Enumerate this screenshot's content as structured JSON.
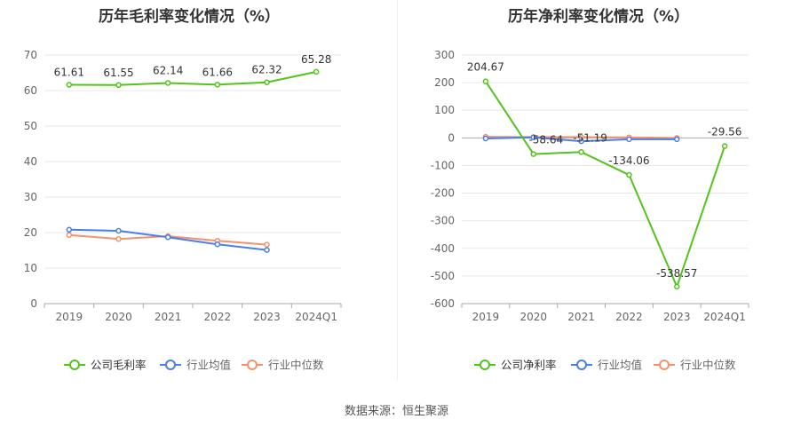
{
  "source_text": "数据来源：恒生聚源",
  "chart_data": [
    {
      "type": "line",
      "title": "历年毛利率变化情况（%）",
      "categories": [
        "2019",
        "2020",
        "2021",
        "2022",
        "2023",
        "2024Q1"
      ],
      "ylim": [
        0,
        70
      ],
      "yticks": [
        0,
        10,
        20,
        30,
        40,
        50,
        60,
        70
      ],
      "grid": true,
      "legend_position": "bottom",
      "series": [
        {
          "name": "公司毛利率",
          "color": "#52c41a",
          "values": [
            61.61,
            61.55,
            62.14,
            61.66,
            62.32,
            65.28
          ],
          "labels": true
        },
        {
          "name": "行业均值",
          "color": "#4a7fe8",
          "values": [
            20.8,
            20.5,
            18.7,
            16.7,
            15.1,
            null
          ],
          "labels": false
        },
        {
          "name": "行业中位数",
          "color": "#f5926b",
          "values": [
            19.3,
            18.2,
            19.0,
            17.7,
            16.6,
            null
          ],
          "labels": false
        }
      ]
    },
    {
      "type": "line",
      "title": "历年净利率变化情况（%）",
      "categories": [
        "2019",
        "2020",
        "2021",
        "2022",
        "2023",
        "2024Q1"
      ],
      "ylim": [
        -600,
        300
      ],
      "yticks": [
        -600,
        -500,
        -400,
        -300,
        -200,
        -100,
        0,
        100,
        200,
        300
      ],
      "grid": true,
      "legend_position": "bottom",
      "series": [
        {
          "name": "公司净利率",
          "color": "#52c41a",
          "values": [
            204.67,
            -58.64,
            -51.19,
            -134.06,
            -538.57,
            -29.56
          ],
          "labels": true
        },
        {
          "name": "行业均值",
          "color": "#4a7fe8",
          "values": [
            -2,
            2,
            -12,
            -5,
            -5,
            null
          ],
          "labels": false
        },
        {
          "name": "行业中位数",
          "color": "#f5926b",
          "values": [
            4,
            3,
            3,
            2,
            0,
            null
          ],
          "labels": false
        }
      ]
    }
  ]
}
